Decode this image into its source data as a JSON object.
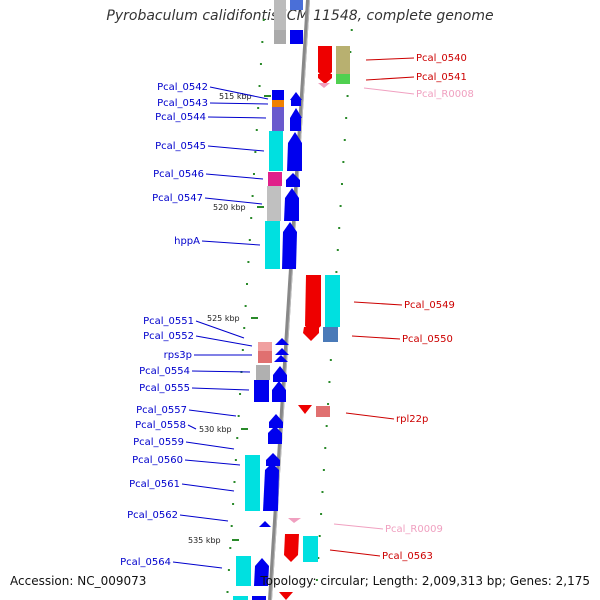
{
  "title": "Pyrobaculum calidifontis JCM 11548, complete genome",
  "accession": "Accession: NC_009073",
  "topology": "Topology: circular; Length: 2,009,313 bp; Genes: 2,175",
  "colors": {
    "left_label": "#0000cc",
    "right_label": "#cc0000",
    "rna_label": "#f0a0c0",
    "backbone": "#888888",
    "tick": "#2a8a2a"
  },
  "kbp_marks": [
    {
      "label": "515 kbp",
      "kbp": 515
    },
    {
      "label": "520 kbp",
      "kbp": 520
    },
    {
      "label": "525 kbp",
      "kbp": 525
    },
    {
      "label": "530 kbp",
      "kbp": 530
    },
    {
      "label": "535 kbp",
      "kbp": 535
    }
  ],
  "left_labels": [
    {
      "text": "Pcal_0542"
    },
    {
      "text": "Pcal_0543"
    },
    {
      "text": "Pcal_0544"
    },
    {
      "text": "Pcal_0545"
    },
    {
      "text": "Pcal_0546"
    },
    {
      "text": "Pcal_0547"
    },
    {
      "text": "hppA"
    },
    {
      "text": "Pcal_0551"
    },
    {
      "text": "Pcal_0552"
    },
    {
      "text": "rps3p"
    },
    {
      "text": "Pcal_0554"
    },
    {
      "text": "Pcal_0555"
    },
    {
      "text": "Pcal_0557"
    },
    {
      "text": "Pcal_0558"
    },
    {
      "text": "Pcal_0559"
    },
    {
      "text": "Pcal_0560"
    },
    {
      "text": "Pcal_0561"
    },
    {
      "text": "Pcal_0562"
    },
    {
      "text": "Pcal_0564"
    }
  ],
  "right_labels": [
    {
      "text": "Pcal_0540",
      "kind": "gene"
    },
    {
      "text": "Pcal_0541",
      "kind": "gene"
    },
    {
      "text": "Pcal_R0008",
      "kind": "rna"
    },
    {
      "text": "Pcal_0549",
      "kind": "gene"
    },
    {
      "text": "Pcal_0550",
      "kind": "gene"
    },
    {
      "text": "rpl22p",
      "kind": "gene"
    },
    {
      "text": "Pcal_R0009",
      "kind": "rna"
    },
    {
      "text": "Pcal_0563",
      "kind": "gene"
    }
  ]
}
